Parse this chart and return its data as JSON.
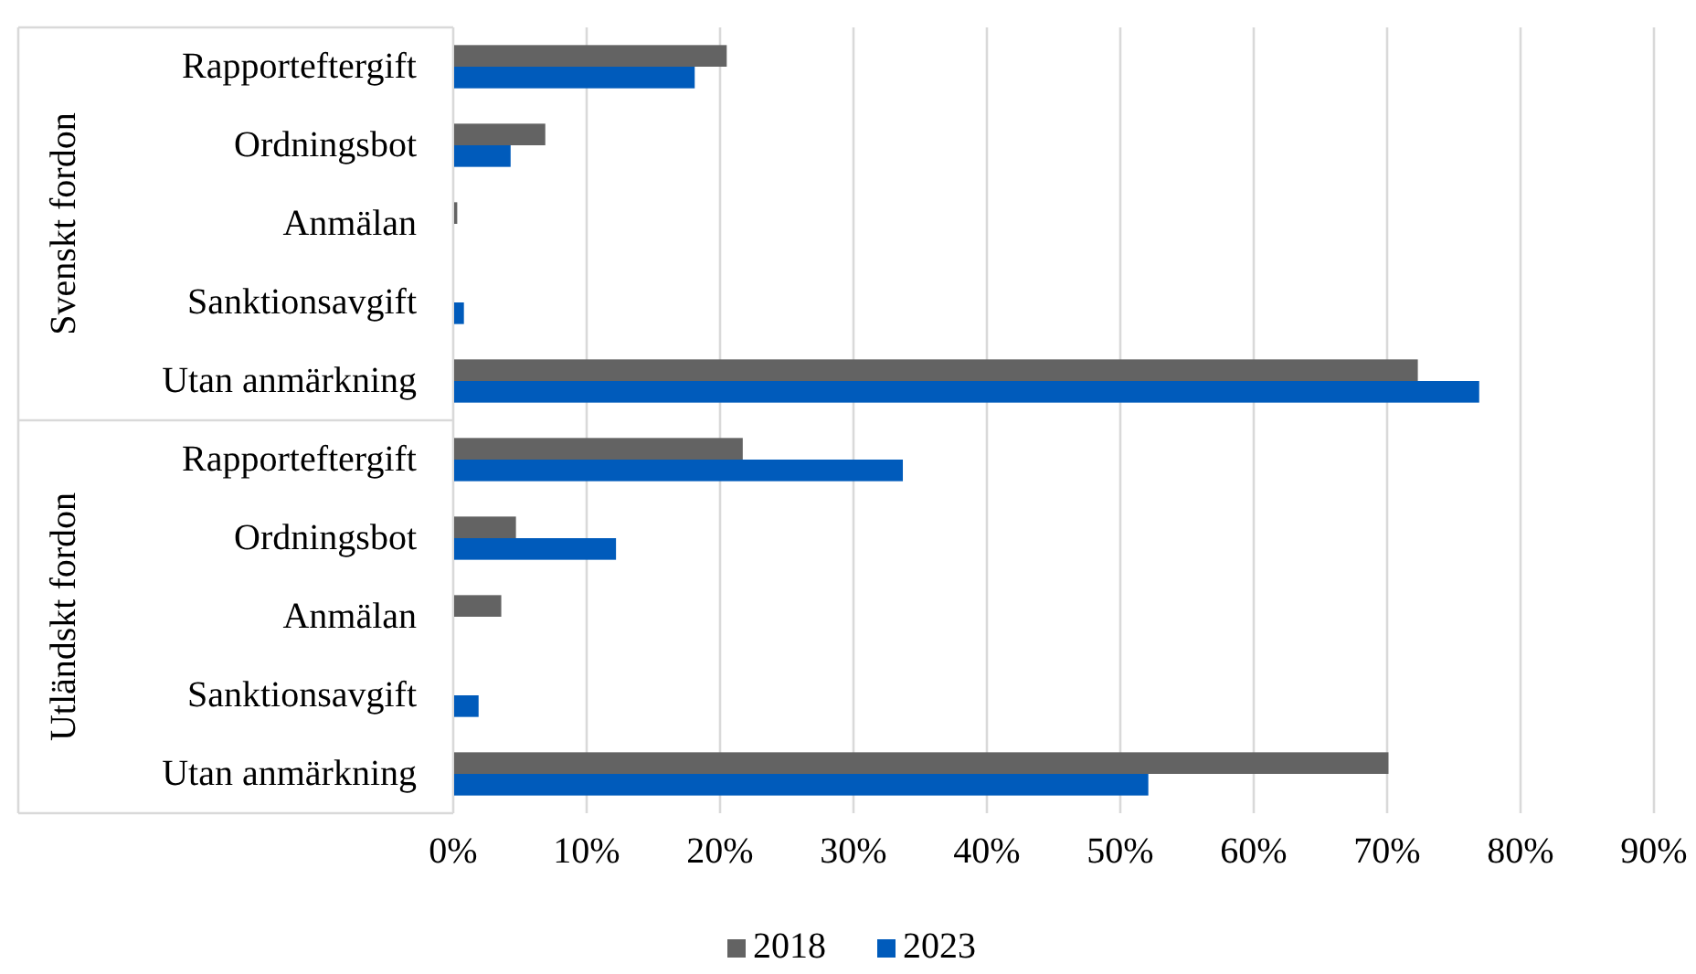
{
  "chart_data": {
    "type": "bar",
    "orientation": "horizontal",
    "categories": [
      "Rapporteftergift",
      "Ordningsbot",
      "Anmälan",
      "Sanktionsavgift",
      "Utan anmärkning",
      "Rapporteftergift",
      "Ordningsbot",
      "Anmälan",
      "Sanktionsavgift",
      "Utan anmärkning"
    ],
    "series": [
      {
        "name": "2018",
        "color": "#636363",
        "values": [
          20.5,
          6.9,
          0.3,
          0,
          72.3,
          21.7,
          4.7,
          3.6,
          0,
          70.1
        ]
      },
      {
        "name": "2023",
        "color": "#005bbb",
        "values": [
          18.1,
          4.3,
          0,
          0.8,
          76.9,
          33.7,
          12.2,
          0,
          1.9,
          52.1
        ]
      }
    ],
    "annotations": [
      "Svenskt fordon",
      "Utländskt fordon"
    ],
    "xlim": [
      0,
      90
    ],
    "xticks": [
      {
        "value": 0,
        "label": "0%"
      },
      {
        "value": 10,
        "label": "10%"
      },
      {
        "value": 20,
        "label": "20%"
      },
      {
        "value": 30,
        "label": "30%"
      },
      {
        "value": 40,
        "label": "40%"
      },
      {
        "value": 50,
        "label": "50%"
      },
      {
        "value": 60,
        "label": "60%"
      },
      {
        "value": 70,
        "label": "70%"
      },
      {
        "value": 80,
        "label": "80%"
      },
      {
        "value": 90,
        "label": "90%"
      }
    ],
    "grid": "x",
    "legend": "bottom"
  }
}
